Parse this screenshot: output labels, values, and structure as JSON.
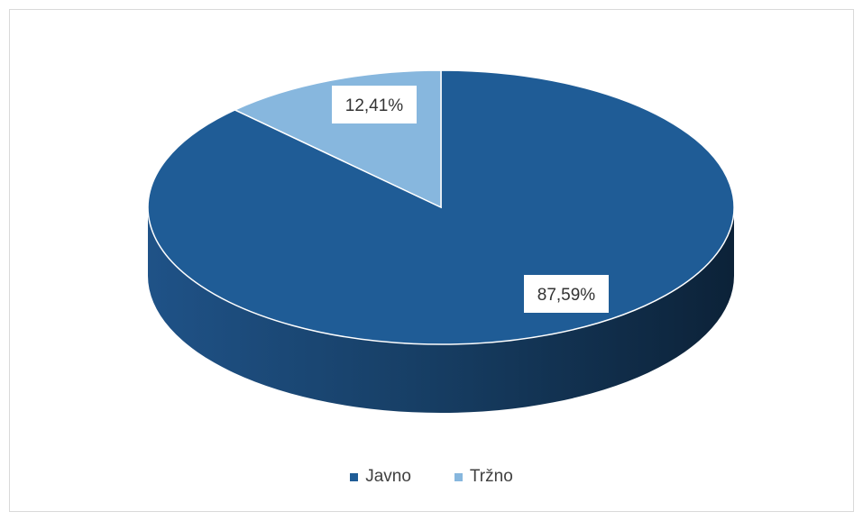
{
  "chart_data": {
    "type": "pie",
    "categories": [
      "Javno",
      "Tržno"
    ],
    "values": [
      87.59,
      12.41
    ],
    "data_labels": [
      "87,59%",
      "12,41%"
    ],
    "colors": [
      "#1f5c96",
      "#87b7de"
    ],
    "legend_position": "bottom",
    "style": "3d"
  }
}
